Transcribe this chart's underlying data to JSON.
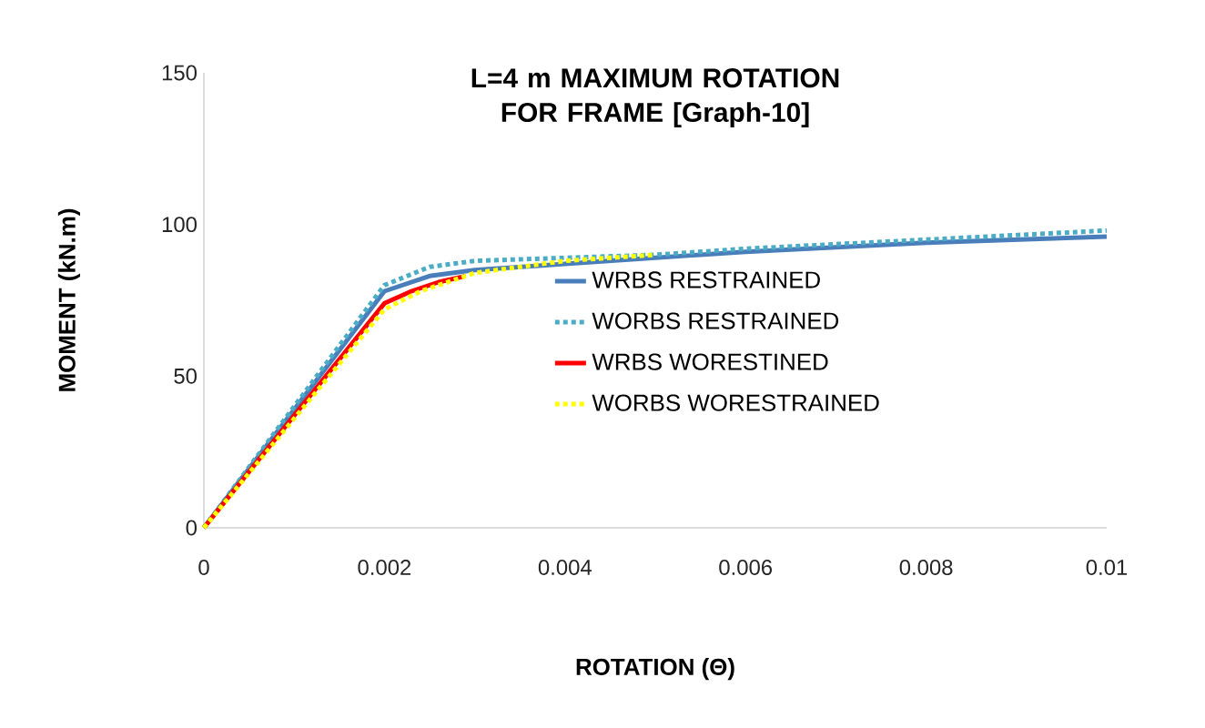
{
  "chart_data": {
    "type": "line",
    "title": "L=4 m MAXIMUM ROTATION FOR FRAME  [Graph-10]",
    "xlabel": "ROTATION (Θ)",
    "ylabel": "MOMENT (kN.m)",
    "xlim": [
      0,
      0.01
    ],
    "ylim": [
      0,
      150
    ],
    "xticks": [
      0,
      0.002,
      0.004,
      0.006,
      0.008,
      0.01
    ],
    "yticks": [
      0,
      50,
      100,
      150
    ],
    "grid": false,
    "legend": "right",
    "series": [
      {
        "name": "WRBS RESTRAINED",
        "color": "#4a7ebb",
        "line_style": "solid",
        "x": [
          0,
          0.001,
          0.002,
          0.0025,
          0.003,
          0.004,
          0.005,
          0.006,
          0.008,
          0.01
        ],
        "values": [
          0,
          39,
          78,
          83,
          85,
          87,
          89,
          91,
          94,
          96
        ]
      },
      {
        "name": "WORBS RESTRAINED",
        "color": "#4bacc6",
        "line_style": "dotted",
        "x": [
          0,
          0.001,
          0.002,
          0.0025,
          0.003,
          0.004,
          0.005,
          0.006,
          0.008,
          0.01
        ],
        "values": [
          0,
          40,
          80,
          86,
          88,
          89,
          90,
          92,
          95,
          98
        ]
      },
      {
        "name": "WRBS WORESTINED",
        "color": "#ff0000",
        "line_style": "solid",
        "x": [
          0,
          0.001,
          0.002,
          0.0023,
          0.0026,
          0.0029
        ],
        "values": [
          0,
          37,
          74,
          78,
          81,
          83
        ]
      },
      {
        "name": "WORBS WORESTRAINED",
        "color": "#ffff00",
        "line_style": "dotted",
        "x": [
          0,
          0.001,
          0.002,
          0.0024,
          0.003,
          0.004,
          0.005
        ],
        "values": [
          0,
          36,
          72,
          78,
          84,
          88,
          90
        ]
      }
    ]
  }
}
